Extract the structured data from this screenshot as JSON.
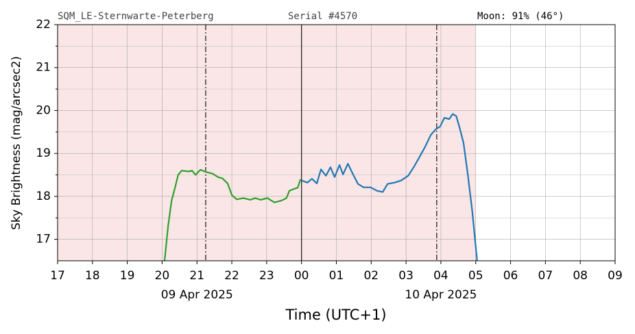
{
  "chart_data": {
    "type": "line",
    "header_left": "SQM_LE-Sternwarte-Peterberg",
    "header_mid": "Serial #4570",
    "header_right": "Moon: 91% (46°)",
    "xlabel": "Time (UTC+1)",
    "ylabel": "Sky Brightness (mag/arcsec2)",
    "xlim": [
      17,
      33
    ],
    "ylim": [
      16.5,
      22
    ],
    "xticks": [
      17,
      18,
      19,
      20,
      21,
      22,
      23,
      {
        "value": 24,
        "label": "00"
      },
      {
        "value": 25,
        "label": "01"
      },
      {
        "value": 26,
        "label": "02"
      },
      {
        "value": 27,
        "label": "03"
      },
      {
        "value": 28,
        "label": "04"
      },
      {
        "value": 29,
        "label": "05"
      },
      {
        "value": 30,
        "label": "06"
      },
      {
        "value": 31,
        "label": "07"
      },
      {
        "value": 32,
        "label": "08"
      },
      {
        "value": 33,
        "label": "09"
      }
    ],
    "yticks": [
      17,
      18,
      19,
      20,
      21,
      22
    ],
    "y_minor_ticks": [
      17.5,
      18.5,
      19.5,
      20.5,
      21.5
    ],
    "grid": true,
    "date_labels": [
      {
        "text": "09 Apr 2025",
        "x": 21
      },
      {
        "text": "10 Apr 2025",
        "x": 28
      }
    ],
    "shaded_span": {
      "range": [
        17,
        29
      ],
      "color": "#fae6e6"
    },
    "vlines": [
      {
        "x": 21.25,
        "style": "dashdot"
      },
      {
        "x": 24,
        "style": "solid"
      },
      {
        "x": 27.88,
        "style": "dashdot"
      }
    ],
    "series": [
      {
        "color": "#2ca02c",
        "x": [
          20.07,
          20.17,
          20.27,
          20.37,
          20.46,
          20.56,
          20.76,
          20.86,
          20.96,
          21.1,
          21.25,
          21.45,
          21.6,
          21.73,
          21.88,
          22.0,
          22.14,
          22.33,
          22.53,
          22.67,
          22.83,
          23.02,
          23.22,
          23.42,
          23.57,
          23.65,
          23.77,
          23.89,
          23.97
        ],
        "values": [
          16.5,
          17.3,
          17.9,
          18.2,
          18.5,
          18.6,
          18.58,
          18.6,
          18.5,
          18.62,
          18.57,
          18.53,
          18.45,
          18.42,
          18.3,
          18.03,
          17.93,
          17.96,
          17.92,
          17.96,
          17.92,
          17.96,
          17.86,
          17.9,
          17.96,
          18.13,
          18.17,
          18.2,
          18.4
        ]
      },
      {
        "color": "#1f77b4",
        "x": [
          24.0,
          24.17,
          24.3,
          24.44,
          24.56,
          24.7,
          24.83,
          24.95,
          25.09,
          25.19,
          25.33,
          25.48,
          25.62,
          25.78,
          25.98,
          26.17,
          26.33,
          26.47,
          26.67,
          26.86,
          27.06,
          27.22,
          27.39,
          27.55,
          27.71,
          27.85,
          27.98,
          28.1,
          28.24,
          28.34,
          28.44,
          28.54,
          28.65,
          28.77,
          28.9,
          29.04
        ],
        "values": [
          18.37,
          18.32,
          18.41,
          18.3,
          18.63,
          18.48,
          18.68,
          18.45,
          18.73,
          18.51,
          18.76,
          18.51,
          18.29,
          18.21,
          18.21,
          18.13,
          18.1,
          18.29,
          18.32,
          18.37,
          18.48,
          18.68,
          18.92,
          19.16,
          19.43,
          19.56,
          19.63,
          19.83,
          19.8,
          19.92,
          19.87,
          19.59,
          19.24,
          18.52,
          17.65,
          16.5
        ]
      }
    ]
  }
}
